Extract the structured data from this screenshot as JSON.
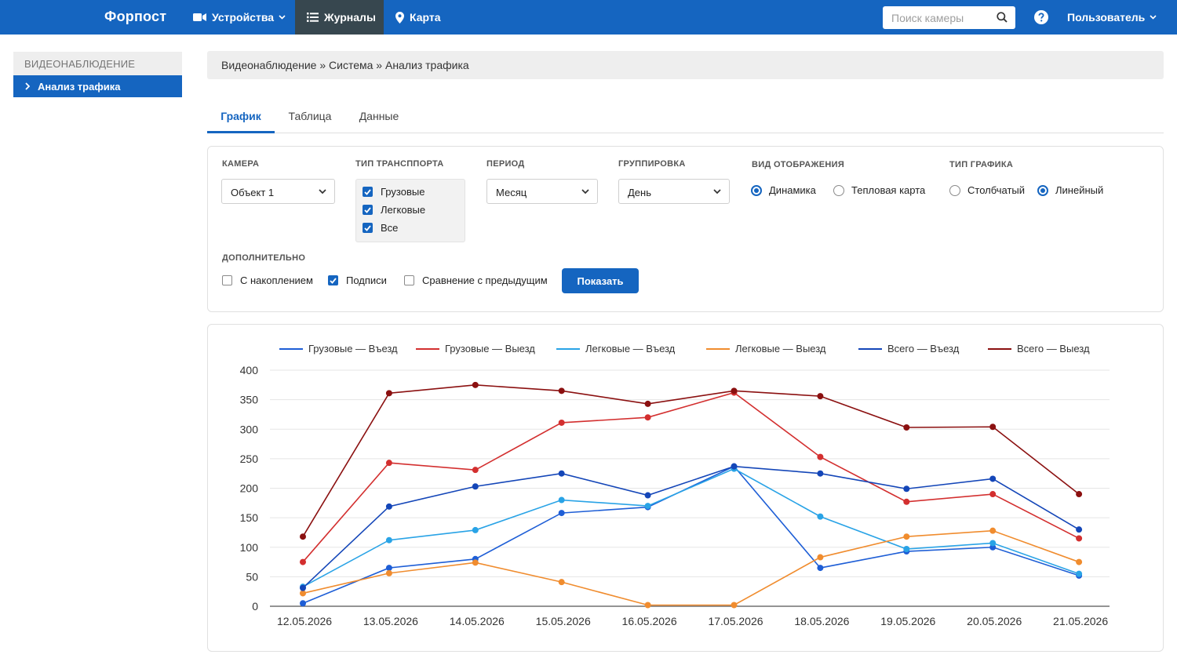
{
  "app": {
    "brand": "Форпост"
  },
  "nav": {
    "devices": "Устройства",
    "journals": "Журналы",
    "map": "Карта",
    "search_placeholder": "Поиск камеры",
    "user": "Пользователь"
  },
  "sidebar": {
    "section": "ВИДЕОНАБЛЮДЕНИЕ",
    "items": [
      {
        "label": "Анализ трафика"
      }
    ]
  },
  "breadcrumb": "Видеонаблюдение » Система » Анализ трафика",
  "tabs": [
    {
      "label": "График"
    },
    {
      "label": "Таблица"
    },
    {
      "label": "Данные"
    }
  ],
  "filters": {
    "camera": {
      "label": "КАМЕРА",
      "value": "Объект 1"
    },
    "transport": {
      "label": "ТИП ТРАНСППОРТА",
      "options": [
        {
          "label": "Грузовые",
          "checked": true
        },
        {
          "label": "Легковые",
          "checked": true
        },
        {
          "label": "Все",
          "checked": true
        }
      ]
    },
    "period": {
      "label": "ПЕРИОД",
      "value": "Месяц"
    },
    "grouping": {
      "label": "ГРУППИРОВКА",
      "value": "День"
    },
    "view": {
      "label": "ВИД ОТОБРАЖЕНИЯ",
      "options": [
        {
          "label": "Динамика",
          "selected": true
        },
        {
          "label": "Тепловая карта",
          "selected": false
        }
      ]
    },
    "chart_type": {
      "label": "ТИП ГРАФИКА",
      "options": [
        {
          "label": "Столбчатый",
          "selected": false
        },
        {
          "label": "Линейный",
          "selected": true
        }
      ]
    },
    "extra": {
      "label": "ДОПОЛНИТЕЛЬНО",
      "options": [
        {
          "label": "С накоплением",
          "checked": false
        },
        {
          "label": "Подписи",
          "checked": true
        },
        {
          "label": "Сравнение с предыдущим",
          "checked": false
        }
      ]
    },
    "show_button": "Показать"
  },
  "colors": {
    "accent": "#1565c0",
    "nav_active": "#37474f"
  },
  "chart_data": {
    "type": "line",
    "x": [
      "12.05.2026",
      "13.05.2026",
      "14.05.2026",
      "15.05.2026",
      "16.05.2026",
      "17.05.2026",
      "18.05.2026",
      "19.05.2026",
      "20.05.2026",
      "21.05.2026"
    ],
    "ylim": [
      0,
      400
    ],
    "yticks": [
      0,
      50,
      100,
      150,
      200,
      250,
      300,
      350,
      400
    ],
    "grid": true,
    "legend_position": "top",
    "series": [
      {
        "name": "Грузовые — Въезд",
        "color": "#1e5ed6",
        "values": [
          5,
          65,
          80,
          158,
          168,
          237,
          65,
          93,
          100,
          52
        ]
      },
      {
        "name": "Грузовые — Выезд",
        "color": "#d32f2f",
        "values": [
          75,
          243,
          231,
          311,
          320,
          362,
          253,
          177,
          190,
          115
        ]
      },
      {
        "name": "Легковые — Въезд",
        "color": "#29a3e6",
        "values": [
          33,
          112,
          129,
          180,
          170,
          233,
          152,
          97,
          107,
          55
        ]
      },
      {
        "name": "Легковые — Выезд",
        "color": "#f08c2e",
        "values": [
          22,
          56,
          74,
          41,
          2,
          2,
          83,
          118,
          128,
          75
        ]
      },
      {
        "name": "Всего — Въезд",
        "color": "#1446b8",
        "values": [
          31,
          169,
          203,
          225,
          188,
          237,
          225,
          199,
          216,
          130
        ]
      },
      {
        "name": "Всего — Выезд",
        "color": "#8b1010",
        "values": [
          118,
          361,
          375,
          365,
          343,
          365,
          356,
          303,
          304,
          190
        ]
      }
    ]
  }
}
